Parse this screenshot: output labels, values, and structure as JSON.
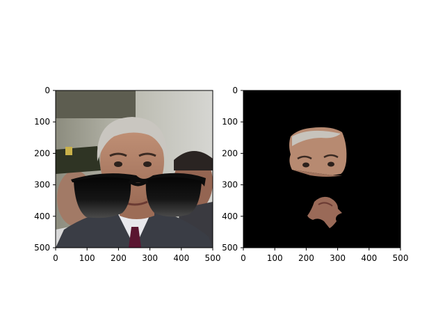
{
  "figure": {
    "background": "#ffffff"
  },
  "panels": [
    {
      "name": "left-photo-panel",
      "content": "face with sunglasses overlay",
      "xticks": [
        "0",
        "100",
        "200",
        "300",
        "400",
        "500"
      ],
      "yticks": [
        "0",
        "100",
        "200",
        "300",
        "400",
        "500"
      ]
    },
    {
      "name": "right-mask-panel",
      "content": "segmented face region on black background",
      "xticks": [
        "0",
        "100",
        "200",
        "300",
        "400",
        "500"
      ],
      "yticks": [
        "0",
        "100",
        "200",
        "300",
        "400",
        "500"
      ]
    }
  ],
  "chart_data": [
    {
      "type": "image",
      "xlim": [
        0,
        500
      ],
      "ylim": [
        500,
        0
      ],
      "xticks": [
        0,
        100,
        200,
        300,
        400,
        500
      ],
      "yticks": [
        0,
        100,
        200,
        300,
        400,
        500
      ],
      "grid": false
    },
    {
      "type": "image",
      "xlim": [
        0,
        500
      ],
      "ylim": [
        500,
        0
      ],
      "xticks": [
        0,
        100,
        200,
        300,
        400,
        500
      ],
      "yticks": [
        0,
        100,
        200,
        300,
        400,
        500
      ],
      "grid": false
    }
  ],
  "colors": {
    "mask_background": "#000000",
    "skin": "#b88a70",
    "hair": "#c9c6c0",
    "suit": "#3a3d45",
    "shirt": "#e8e8ec",
    "tie": "#5a1530",
    "lens": "#141414"
  }
}
